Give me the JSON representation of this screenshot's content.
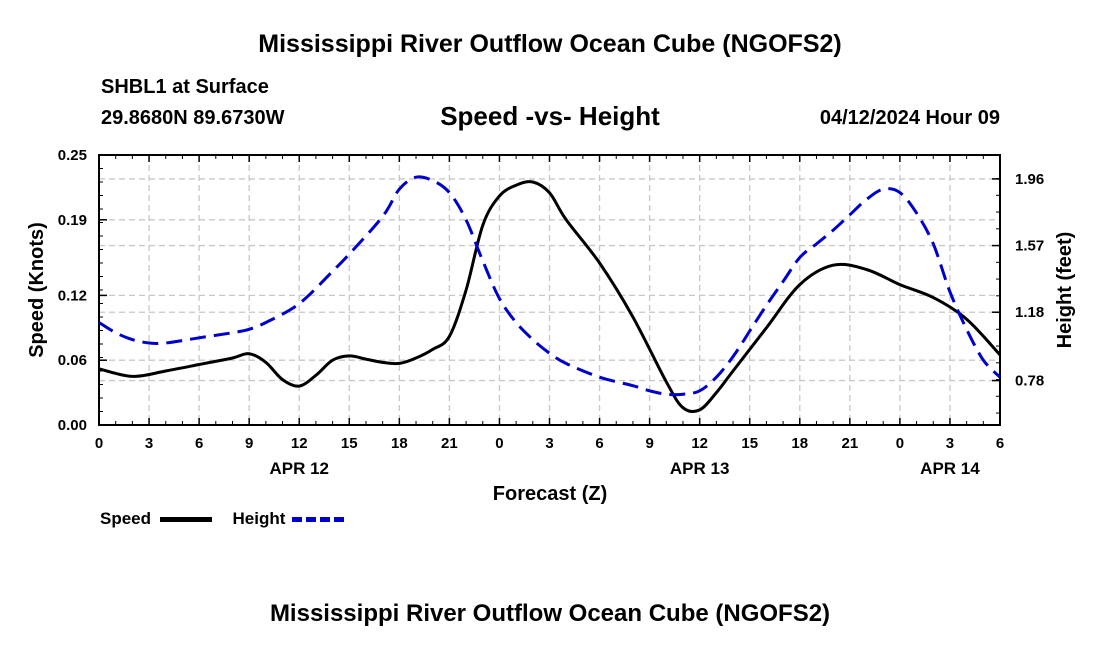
{
  "page": {
    "title": "Mississippi River Outflow Ocean Cube (NGOFS2)",
    "footer_title": "Mississippi River Outflow Ocean Cube (NGOFS2)",
    "station": "SHBL1 at Surface",
    "coords": "29.8680N  89.6730W",
    "subtitle": "Speed -vs- Height",
    "datetime": "04/12/2024 Hour 09"
  },
  "legend": {
    "speed_label": "Speed",
    "height_label": "Height"
  },
  "chart_data": {
    "type": "line",
    "title": "Speed -vs- Height",
    "xlabel": "Forecast (Z)",
    "ylabel": "Speed (Knots)",
    "y2label": "Height (feet)",
    "x_unit": "hours from APR 12 00Z",
    "xlim": [
      0,
      54
    ],
    "ylim": [
      0,
      0.25
    ],
    "y2lim": [
      0.52,
      2.1
    ],
    "x_ticks": [
      0,
      3,
      6,
      9,
      12,
      15,
      18,
      21,
      24,
      27,
      30,
      33,
      36,
      39,
      42,
      45,
      48,
      51,
      54
    ],
    "x_tick_labels": [
      "0",
      "3",
      "6",
      "9",
      "12",
      "15",
      "18",
      "21",
      "0",
      "3",
      "6",
      "9",
      "12",
      "15",
      "18",
      "21",
      "0",
      "3",
      "6"
    ],
    "date_labels": [
      {
        "x": 12,
        "label": "APR 12"
      },
      {
        "x": 36,
        "label": "APR 13"
      },
      {
        "x": 51,
        "label": "APR 14"
      }
    ],
    "y_ticks": [
      0.0,
      0.06,
      0.12,
      0.19,
      0.25
    ],
    "y_tick_labels": [
      "0.00",
      "0.06",
      "0.12",
      "0.19",
      "0.25"
    ],
    "y2_ticks": [
      0.78,
      1.18,
      1.57,
      1.96
    ],
    "y2_tick_labels": [
      "0.78",
      "1.18",
      "1.57",
      "1.96"
    ],
    "grid": true,
    "series": [
      {
        "name": "Speed",
        "axis": "left",
        "color": "#000000",
        "dash": "solid",
        "x": [
          0,
          2,
          4,
          6,
          8,
          9,
          10,
          11,
          12,
          13,
          14,
          15,
          16,
          17,
          18,
          19,
          20,
          21,
          22,
          23,
          24,
          25,
          26,
          27,
          28,
          30,
          32,
          34,
          35,
          36,
          37,
          38,
          40,
          42,
          44,
          46,
          48,
          50,
          52,
          54
        ],
        "y": [
          0.052,
          0.045,
          0.05,
          0.056,
          0.062,
          0.066,
          0.058,
          0.042,
          0.036,
          0.046,
          0.06,
          0.064,
          0.061,
          0.058,
          0.057,
          0.062,
          0.07,
          0.082,
          0.125,
          0.185,
          0.212,
          0.222,
          0.225,
          0.215,
          0.19,
          0.15,
          0.1,
          0.04,
          0.016,
          0.014,
          0.03,
          0.05,
          0.09,
          0.13,
          0.148,
          0.144,
          0.13,
          0.118,
          0.098,
          0.065
        ]
      },
      {
        "name": "Height",
        "axis": "right",
        "color": "#0000cc",
        "dash": "dashed",
        "x": [
          0,
          1,
          2,
          3,
          4,
          6,
          8,
          9,
          10,
          12,
          14,
          15,
          17,
          18,
          19,
          20,
          21,
          22,
          23,
          24,
          25,
          26,
          27,
          28,
          30,
          32,
          33,
          34,
          35,
          36,
          37,
          38,
          39,
          40,
          41,
          42,
          43,
          44,
          45,
          46,
          47,
          48,
          49,
          50,
          51,
          52,
          53,
          54
        ],
        "y": [
          1.12,
          1.06,
          1.02,
          1.0,
          1.0,
          1.03,
          1.06,
          1.08,
          1.12,
          1.23,
          1.42,
          1.52,
          1.74,
          1.9,
          1.97,
          1.95,
          1.88,
          1.72,
          1.48,
          1.26,
          1.12,
          1.02,
          0.94,
          0.88,
          0.8,
          0.75,
          0.72,
          0.7,
          0.7,
          0.72,
          0.8,
          0.92,
          1.07,
          1.22,
          1.36,
          1.5,
          1.58,
          1.66,
          1.75,
          1.84,
          1.9,
          1.88,
          1.76,
          1.58,
          1.3,
          1.08,
          0.9,
          0.8
        ]
      }
    ]
  }
}
